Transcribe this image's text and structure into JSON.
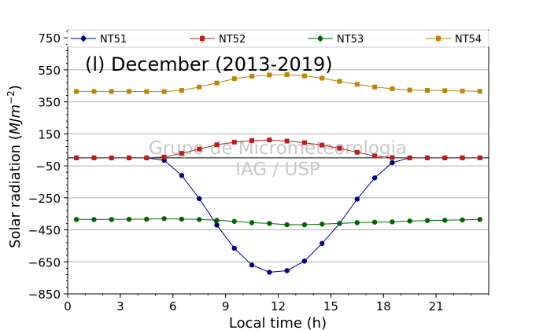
{
  "chart_data": {
    "type": "line",
    "title": "(l) December (2013-2019)",
    "xlabel": "Local time (h)",
    "ylabel_main": "Solar radiation (",
    "ylabel_unit": "MJm",
    "ylabel_exp": "−2",
    "ylabel_close": ")",
    "watermark": [
      "Grupo de Micrometeorologia",
      "IAG / USP"
    ],
    "xlim": [
      0,
      24
    ],
    "ylim": [
      -850,
      800
    ],
    "xticks": [
      0,
      3,
      6,
      9,
      12,
      15,
      18,
      21
    ],
    "yticks": [
      -850,
      -650,
      -450,
      -250,
      -50,
      150,
      350,
      550,
      750
    ],
    "grid": "horizontal",
    "zero_line": 0,
    "legend_position": "top",
    "x": [
      0.5,
      1.5,
      2.5,
      3.5,
      4.5,
      5.5,
      6.5,
      7.5,
      8.5,
      9.5,
      10.5,
      11.5,
      12.5,
      13.5,
      14.5,
      15.5,
      16.5,
      17.5,
      18.5,
      19.5,
      20.5,
      21.5,
      22.5,
      23.5
    ],
    "series": [
      {
        "name": "NT51",
        "color": "#00007f",
        "marker": "circle",
        "values": [
          0,
          0,
          0,
          0,
          0,
          -15,
          -110,
          -255,
          -420,
          -565,
          -670,
          -715,
          -705,
          -645,
          -535,
          -410,
          -258,
          -125,
          -30,
          0,
          0,
          0,
          0,
          0
        ]
      },
      {
        "name": "NT52",
        "color": "#b22222",
        "marker": "square",
        "values": [
          0,
          0,
          0,
          0,
          0,
          5,
          28,
          55,
          82,
          98,
          108,
          112,
          105,
          95,
          80,
          60,
          35,
          12,
          2,
          0,
          0,
          0,
          0,
          0
        ]
      },
      {
        "name": "NT53",
        "color": "#006400",
        "marker": "circle",
        "values": [
          -385,
          -385,
          -385,
          -384,
          -383,
          -380,
          -383,
          -385,
          -390,
          -397,
          -405,
          -410,
          -418,
          -418,
          -414,
          -410,
          -405,
          -402,
          -400,
          -395,
          -392,
          -390,
          -388,
          -385
        ]
      },
      {
        "name": "NT54",
        "color": "#b8860b",
        "marker": "square",
        "values": [
          415,
          415,
          415,
          415,
          414,
          414,
          422,
          443,
          468,
          495,
          510,
          518,
          520,
          512,
          498,
          478,
          460,
          443,
          432,
          424,
          422,
          420,
          418,
          416
        ]
      }
    ]
  }
}
